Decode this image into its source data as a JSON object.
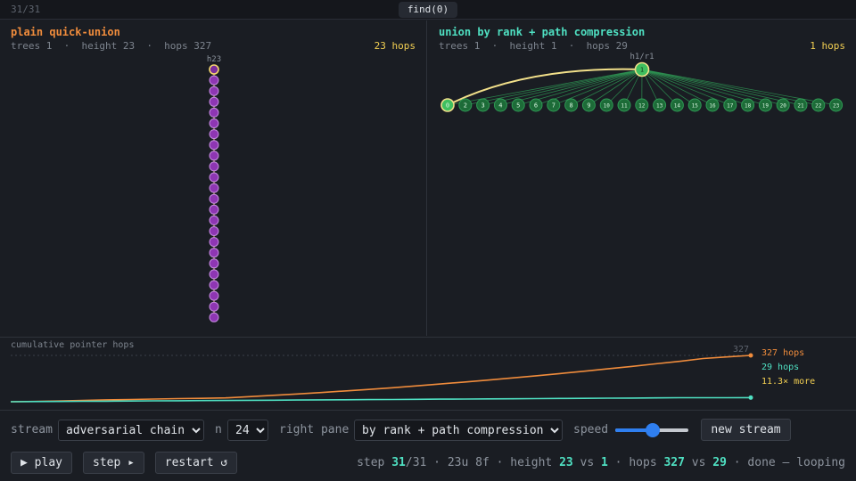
{
  "topbar": {
    "step_counter": "31/31",
    "op_label": "find(0)"
  },
  "left_pane": {
    "title": "plain quick-union",
    "stats": "trees 1  ·  height 23  ·  hops 327",
    "hops_badge": "23 hops",
    "root_label": "h23",
    "chain_length": 24
  },
  "right_pane": {
    "title": "union by rank + path compression",
    "stats": "trees 1  ·  height 1  ·  hops 29",
    "hops_badge": "1 hops",
    "root_label": "h1/r1",
    "root_node": "1",
    "leaves": [
      "0",
      "2",
      "3",
      "4",
      "5",
      "6",
      "7",
      "8",
      "9",
      "10",
      "11",
      "12",
      "13",
      "14",
      "15",
      "16",
      "17",
      "18",
      "19",
      "20",
      "21",
      "22",
      "23"
    ]
  },
  "chart": {
    "title": "cumulative pointer hops",
    "max_label": "327",
    "legend_plain": "327 hops",
    "legend_ranked": "29 hops",
    "legend_ratio": "11.3× more",
    "colors": {
      "plain": "#f08c3c",
      "ranked": "#4fe0c2",
      "highlight": "#f2cf52"
    },
    "chart_data": {
      "type": "line",
      "x": [
        0,
        1,
        2,
        3,
        4,
        5,
        6,
        7,
        8,
        9,
        10,
        11,
        12,
        13,
        14,
        15,
        16,
        17,
        18,
        19,
        20,
        21,
        22,
        23,
        24,
        25,
        26,
        27,
        28,
        29,
        30,
        31
      ],
      "series": [
        {
          "values": [
            0,
            2,
            5,
            9,
            13,
            16,
            19,
            22,
            24,
            27,
            36,
            45,
            55,
            65,
            76,
            87,
            99,
            112,
            125,
            139,
            153,
            168,
            183,
            199,
            215,
            232,
            249,
            267,
            285,
            305,
            316,
            327
          ]
        },
        {
          "values": [
            0,
            1,
            2,
            3,
            4,
            5,
            6,
            7,
            8,
            9,
            10,
            11,
            12,
            13,
            14,
            15,
            16,
            17,
            18,
            19,
            20,
            21,
            22,
            23,
            24,
            25,
            26,
            27,
            28,
            28,
            28,
            29
          ]
        }
      ],
      "ylim": [
        0,
        327
      ]
    }
  },
  "controls": {
    "stream_label": "stream",
    "stream_value": "adversarial chain",
    "n_label": "n",
    "n_value": "24",
    "right_pane_label": "right pane",
    "right_pane_value": "by rank + path compression",
    "speed_label": "speed",
    "speed_value": 0.52,
    "new_stream_label": "new stream",
    "play_label": "▶ play",
    "step_label": "step ▸",
    "restart_label": "restart ↺"
  },
  "status": {
    "step_prefix": "step ",
    "step_current": "31",
    "step_total": "/31 · 23u 8f · height ",
    "height_plain": "23",
    "vs1": " vs ",
    "height_ranked": "1",
    "hops_text": " · hops ",
    "hops_plain": "327",
    "vs2": " vs ",
    "hops_ranked": "29",
    "suffix": " · done — looping"
  }
}
